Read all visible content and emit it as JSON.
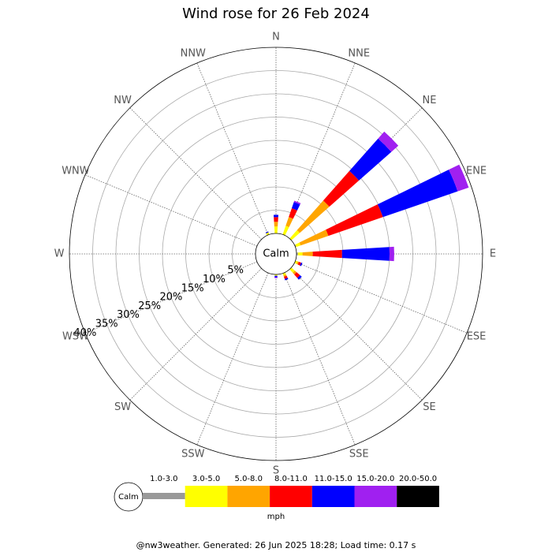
{
  "chart_data": {
    "type": "windrose",
    "title": "Wind rose for 26 Feb 2024",
    "categories": [
      "N",
      "NNE",
      "NE",
      "ENE",
      "E",
      "ESE",
      "SE",
      "SSE",
      "S",
      "SSW",
      "SW",
      "WSW",
      "W",
      "WNW",
      "NW",
      "NNW"
    ],
    "series": [
      {
        "name": "1.0-3.0",
        "color": "#999999",
        "values": [
          0,
          0,
          0,
          0.2,
          0.3,
          0,
          0,
          0,
          0,
          0,
          0,
          0,
          0,
          0,
          0,
          0
        ]
      },
      {
        "name": "3.0-5.0",
        "color": "#ffff00",
        "values": [
          1.5,
          2,
          2.4,
          1,
          1,
          0.5,
          1,
          0.5,
          0.3,
          0,
          0,
          0,
          0,
          0,
          0,
          0.5
        ]
      },
      {
        "name": "5.0-8.0",
        "color": "#ffa500",
        "values": [
          1,
          2,
          8.5,
          6.3,
          2.2,
          0.3,
          0.5,
          0.3,
          0,
          0,
          0,
          0,
          0,
          0,
          0,
          0
        ]
      },
      {
        "name": "8.0-11.0",
        "color": "#ff0000",
        "values": [
          1,
          2,
          8.5,
          12.4,
          6.3,
          0.5,
          1,
          0.5,
          0,
          0,
          0,
          0,
          0,
          0,
          0,
          0
        ]
      },
      {
        "name": "11.0-15.0",
        "color": "#0000ff",
        "values": [
          0.5,
          1.4,
          9.3,
          17,
          10.2,
          0.3,
          0.5,
          0.3,
          0.3,
          0,
          0,
          0,
          0,
          0,
          0,
          0.2
        ]
      },
      {
        "name": "15.0-20.0",
        "color": "#a020f0",
        "values": [
          0,
          0.3,
          2,
          2.5,
          1,
          0,
          0,
          0,
          0.2,
          0,
          0,
          0,
          0,
          0,
          0,
          0
        ]
      },
      {
        "name": "20.0-50.0",
        "color": "#000000",
        "values": [
          0,
          0,
          0,
          0,
          0,
          0,
          0,
          0,
          0,
          0,
          0,
          0,
          0,
          0,
          0,
          0
        ]
      }
    ],
    "ylim": [
      0,
      40
    ],
    "yticks": [
      {
        "value": 5,
        "label": "5%"
      },
      {
        "value": 10,
        "label": "10%"
      },
      {
        "value": 15,
        "label": "15%"
      },
      {
        "value": 20,
        "label": "20%"
      },
      {
        "value": 25,
        "label": "25%"
      },
      {
        "value": 30,
        "label": "30%"
      },
      {
        "value": 35,
        "label": "35%"
      },
      {
        "value": 40,
        "label": "40%"
      }
    ],
    "calm_label": "Calm",
    "unit": "mph",
    "footer": "@nw3weather. Generated: 26 Jun 2025 18:28; Load time: 0.17 s"
  }
}
